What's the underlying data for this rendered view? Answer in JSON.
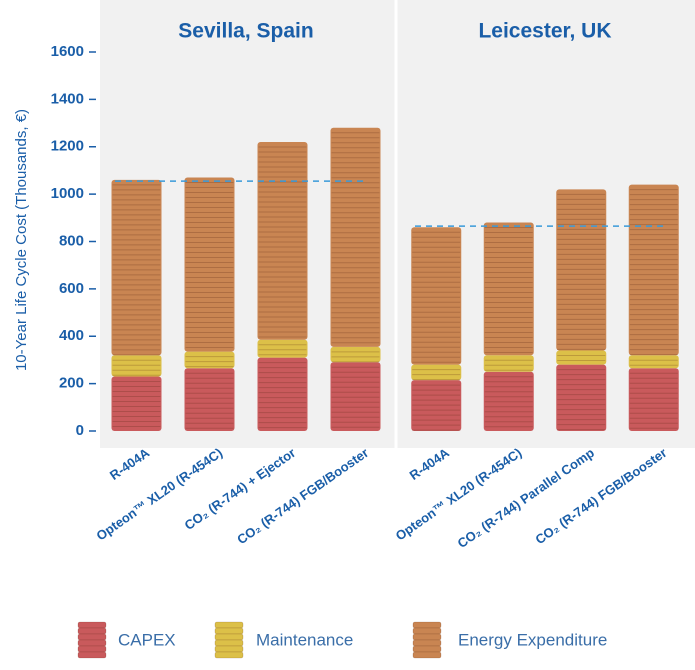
{
  "chart_data": {
    "type": "stacked-bar",
    "y_label": "10-Year Life Cycle Cost (Thousands, €)",
    "ylim": [
      0,
      1600
    ],
    "yticks": [
      0,
      200,
      400,
      600,
      800,
      1000,
      1200,
      1400,
      1600
    ],
    "series": [
      {
        "name": "CAPEX",
        "color": "#c95a5c"
      },
      {
        "name": "Maintenance",
        "color": "#dcc048"
      },
      {
        "name": "Energy Expenditure",
        "color": "#c98552"
      }
    ],
    "panels": [
      {
        "title": "Sevilla, Spain",
        "categories": [
          "R-404A",
          "Opteon™ XL20 (R-454C)",
          "CO₂ (R-744) + Ejector",
          "CO₂ (R-744) FGB/Booster"
        ],
        "values": [
          [
            230,
            265,
            310,
            290
          ],
          [
            90,
            70,
            75,
            65
          ],
          [
            740,
            735,
            835,
            925
          ]
        ],
        "reference_line": 1055
      },
      {
        "title": "Leicester, UK",
        "categories": [
          "R-404A",
          "Opteon™ XL20 (R-454C)",
          "CO₂ (R-744) Parallel Comp",
          "CO₂ (R-744) FGB/Booster"
        ],
        "values": [
          [
            215,
            250,
            280,
            265
          ],
          [
            65,
            70,
            60,
            55
          ],
          [
            580,
            560,
            680,
            720
          ]
        ],
        "reference_line": 865
      }
    ]
  }
}
